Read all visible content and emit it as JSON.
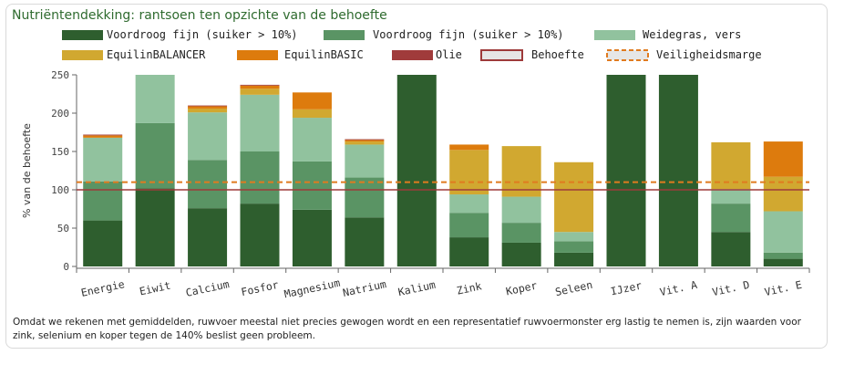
{
  "title": "Nutriëntendekking: rantsoen ten opzichte van de behoefte",
  "footnote": "Omdat we rekenen met gemiddelden, ruwvoer meestal niet precies gewogen wordt en een representatief ruwvoermonster erg lastig te nemen is, zijn waarden voor zink, selenium en koper tegen de 140% beslist geen probleem.",
  "chart_data": {
    "type": "bar",
    "stacked": true,
    "categories": [
      "Energie",
      "Eiwit",
      "Calcium",
      "Fosfor",
      "Magnesium",
      "Natrium",
      "Kalium",
      "Zink",
      "Koper",
      "Seleen",
      "IJzer",
      "Vit. A",
      "Vit. D",
      "Vit. E"
    ],
    "series": [
      {
        "name": "Voordroog fijn (suiker > 10%)",
        "color": "#2e5e2e",
        "values": [
          60,
          102,
          76,
          82,
          74,
          64,
          250,
          38,
          31,
          18,
          250,
          250,
          45,
          10
        ]
      },
      {
        "name": "Voordroog fijn (suiker > 10%)",
        "color": "#5a9464",
        "values": [
          51,
          85,
          63,
          68,
          63,
          52,
          0,
          32,
          26,
          15,
          0,
          0,
          37,
          8
        ]
      },
      {
        "name": "Weidegras, vers",
        "color": "#91c29e",
        "values": [
          57,
          63,
          62,
          74,
          57,
          43,
          0,
          24,
          34,
          12,
          0,
          0,
          19,
          54
        ]
      },
      {
        "name": "EquilinBALANCER",
        "color": "#d1a830",
        "values": [
          0,
          0,
          5,
          8,
          11,
          4,
          0,
          58,
          66,
          91,
          0,
          0,
          61,
          45
        ]
      },
      {
        "name": "EquilinBASIC",
        "color": "#dd7b0d",
        "values": [
          3,
          0,
          3,
          4,
          22,
          2,
          0,
          7,
          0,
          0,
          0,
          0,
          0,
          46
        ]
      },
      {
        "name": "Olie",
        "color": "#a03b3b",
        "values": [
          1,
          0,
          1,
          1,
          0,
          1,
          0,
          0,
          0,
          0,
          0,
          0,
          0,
          0
        ]
      }
    ],
    "reference_lines": [
      {
        "name": "Behoefte",
        "value": 100,
        "color": "#9e3a3a",
        "style": "solid"
      },
      {
        "name": "Veiligheidsmarge",
        "value": 110,
        "color": "#e07b1f",
        "style": "dashed"
      }
    ],
    "legend": [
      "Voordroog fijn (suiker > 10%)",
      "Voordroog fijn (suiker > 10%)",
      "Weidegras, vers",
      "EquilinBALANCER",
      "EquilinBASIC",
      "Olie",
      "Behoefte",
      "Veiligheidsmarge"
    ],
    "legend_position": "top",
    "ylabel": "% van de behoefte",
    "xlabel": "",
    "ylim": [
      0,
      250
    ],
    "yticks": [
      0,
      50,
      100,
      150,
      200,
      250
    ],
    "grid": false
  }
}
